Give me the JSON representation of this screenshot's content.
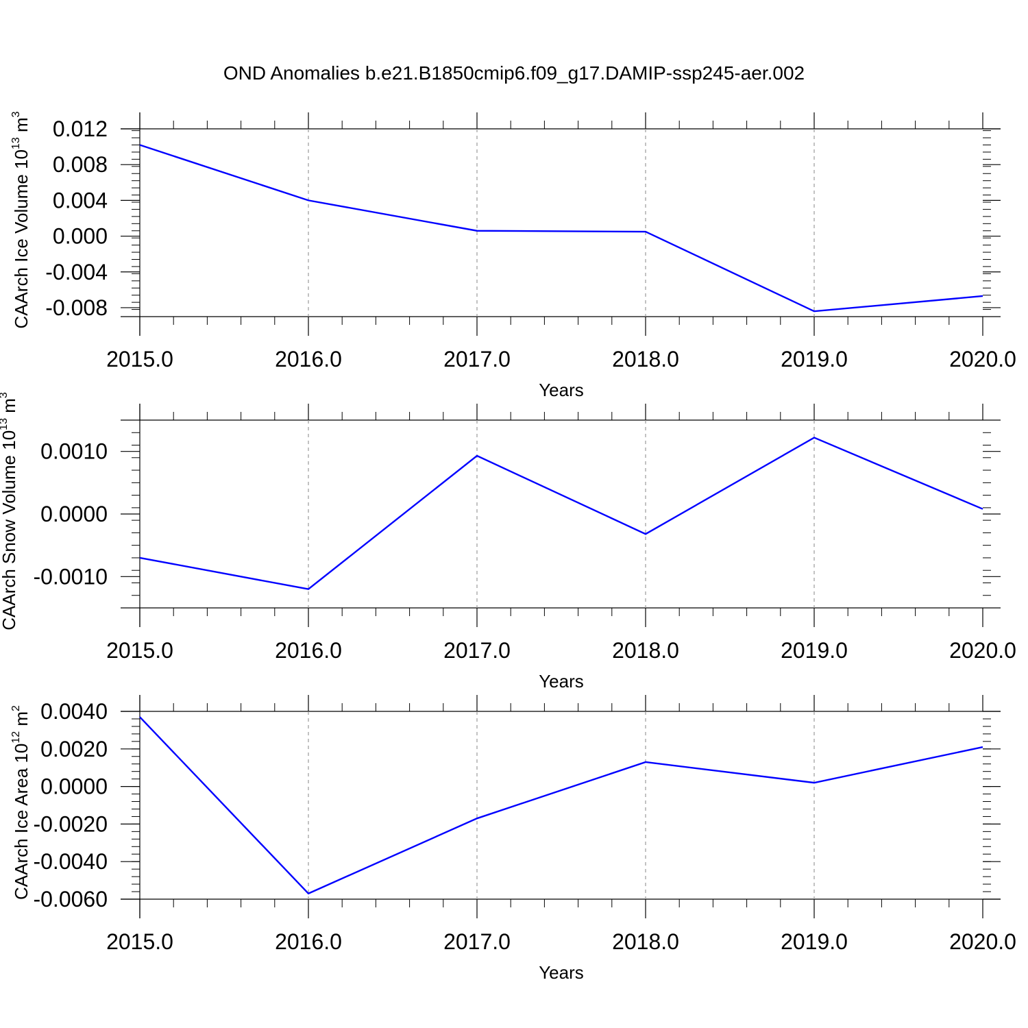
{
  "title": "OND Anomalies b.e21.B1850cmip6.f09_g17.DAMIP-ssp245-aer.002",
  "line_color": "#0000ff",
  "chart_data": [
    {
      "type": "line",
      "ylabel": {
        "main": "CAArch Ice Volume 10",
        "exp": "13",
        "mid": " m",
        "unit_exp": "3"
      },
      "xlabel": "Years",
      "x": [
        2015,
        2016,
        2017,
        2018,
        2019,
        2020
      ],
      "values": [
        0.0102,
        0.004,
        0.0006,
        0.0005,
        -0.0084,
        -0.0067
      ],
      "ylim": [
        -0.009,
        0.012
      ],
      "yticks": [
        0.012,
        0.008,
        0.004,
        0.0,
        -0.004,
        -0.008
      ],
      "ytick_labels": [
        "0.012",
        "0.008",
        "0.004",
        "0.000",
        "-0.004",
        "-0.008"
      ],
      "xticks": [
        2015,
        2016,
        2017,
        2018,
        2019,
        2020
      ],
      "xtick_labels": [
        "2015.0",
        "2016.0",
        "2017.0",
        "2018.0",
        "2019.0",
        "2020.0"
      ],
      "grid": "x-dashed"
    },
    {
      "type": "line",
      "ylabel": {
        "main": "CAArch Snow Volume 10",
        "exp": "13",
        "mid": " m",
        "unit_exp": "3"
      },
      "xlabel": "Years",
      "x": [
        2015,
        2016,
        2017,
        2018,
        2019,
        2020
      ],
      "values": [
        -0.0007,
        -0.0012,
        0.00093,
        -0.00032,
        0.00122,
        8e-05
      ],
      "ylim": [
        -0.0015,
        0.0015
      ],
      "yticks": [
        0.001,
        0.0,
        -0.001
      ],
      "ytick_labels": [
        "0.0010",
        "0.0000",
        "-0.0010"
      ],
      "xticks": [
        2015,
        2016,
        2017,
        2018,
        2019,
        2020
      ],
      "xtick_labels": [
        "2015.0",
        "2016.0",
        "2017.0",
        "2018.0",
        "2019.0",
        "2020.0"
      ],
      "grid": "x-dashed"
    },
    {
      "type": "line",
      "ylabel": {
        "main": "CAArch Ice Area 10",
        "exp": "12",
        "mid": " m",
        "unit_exp": "2"
      },
      "xlabel": "Years",
      "x": [
        2015,
        2016,
        2017,
        2018,
        2019,
        2020
      ],
      "values": [
        0.0037,
        -0.0057,
        -0.0017,
        0.0013,
        0.0002,
        0.0021
      ],
      "ylim": [
        -0.006,
        0.004
      ],
      "yticks": [
        0.004,
        0.002,
        0.0,
        -0.002,
        -0.004,
        -0.006
      ],
      "ytick_labels": [
        "0.0040",
        "0.0020",
        "0.0000",
        "-0.0020",
        "-0.0040",
        "-0.0060"
      ],
      "xticks": [
        2015,
        2016,
        2017,
        2018,
        2019,
        2020
      ],
      "xtick_labels": [
        "2015.0",
        "2016.0",
        "2017.0",
        "2018.0",
        "2019.0",
        "2020.0"
      ],
      "grid": "x-dashed"
    }
  ]
}
